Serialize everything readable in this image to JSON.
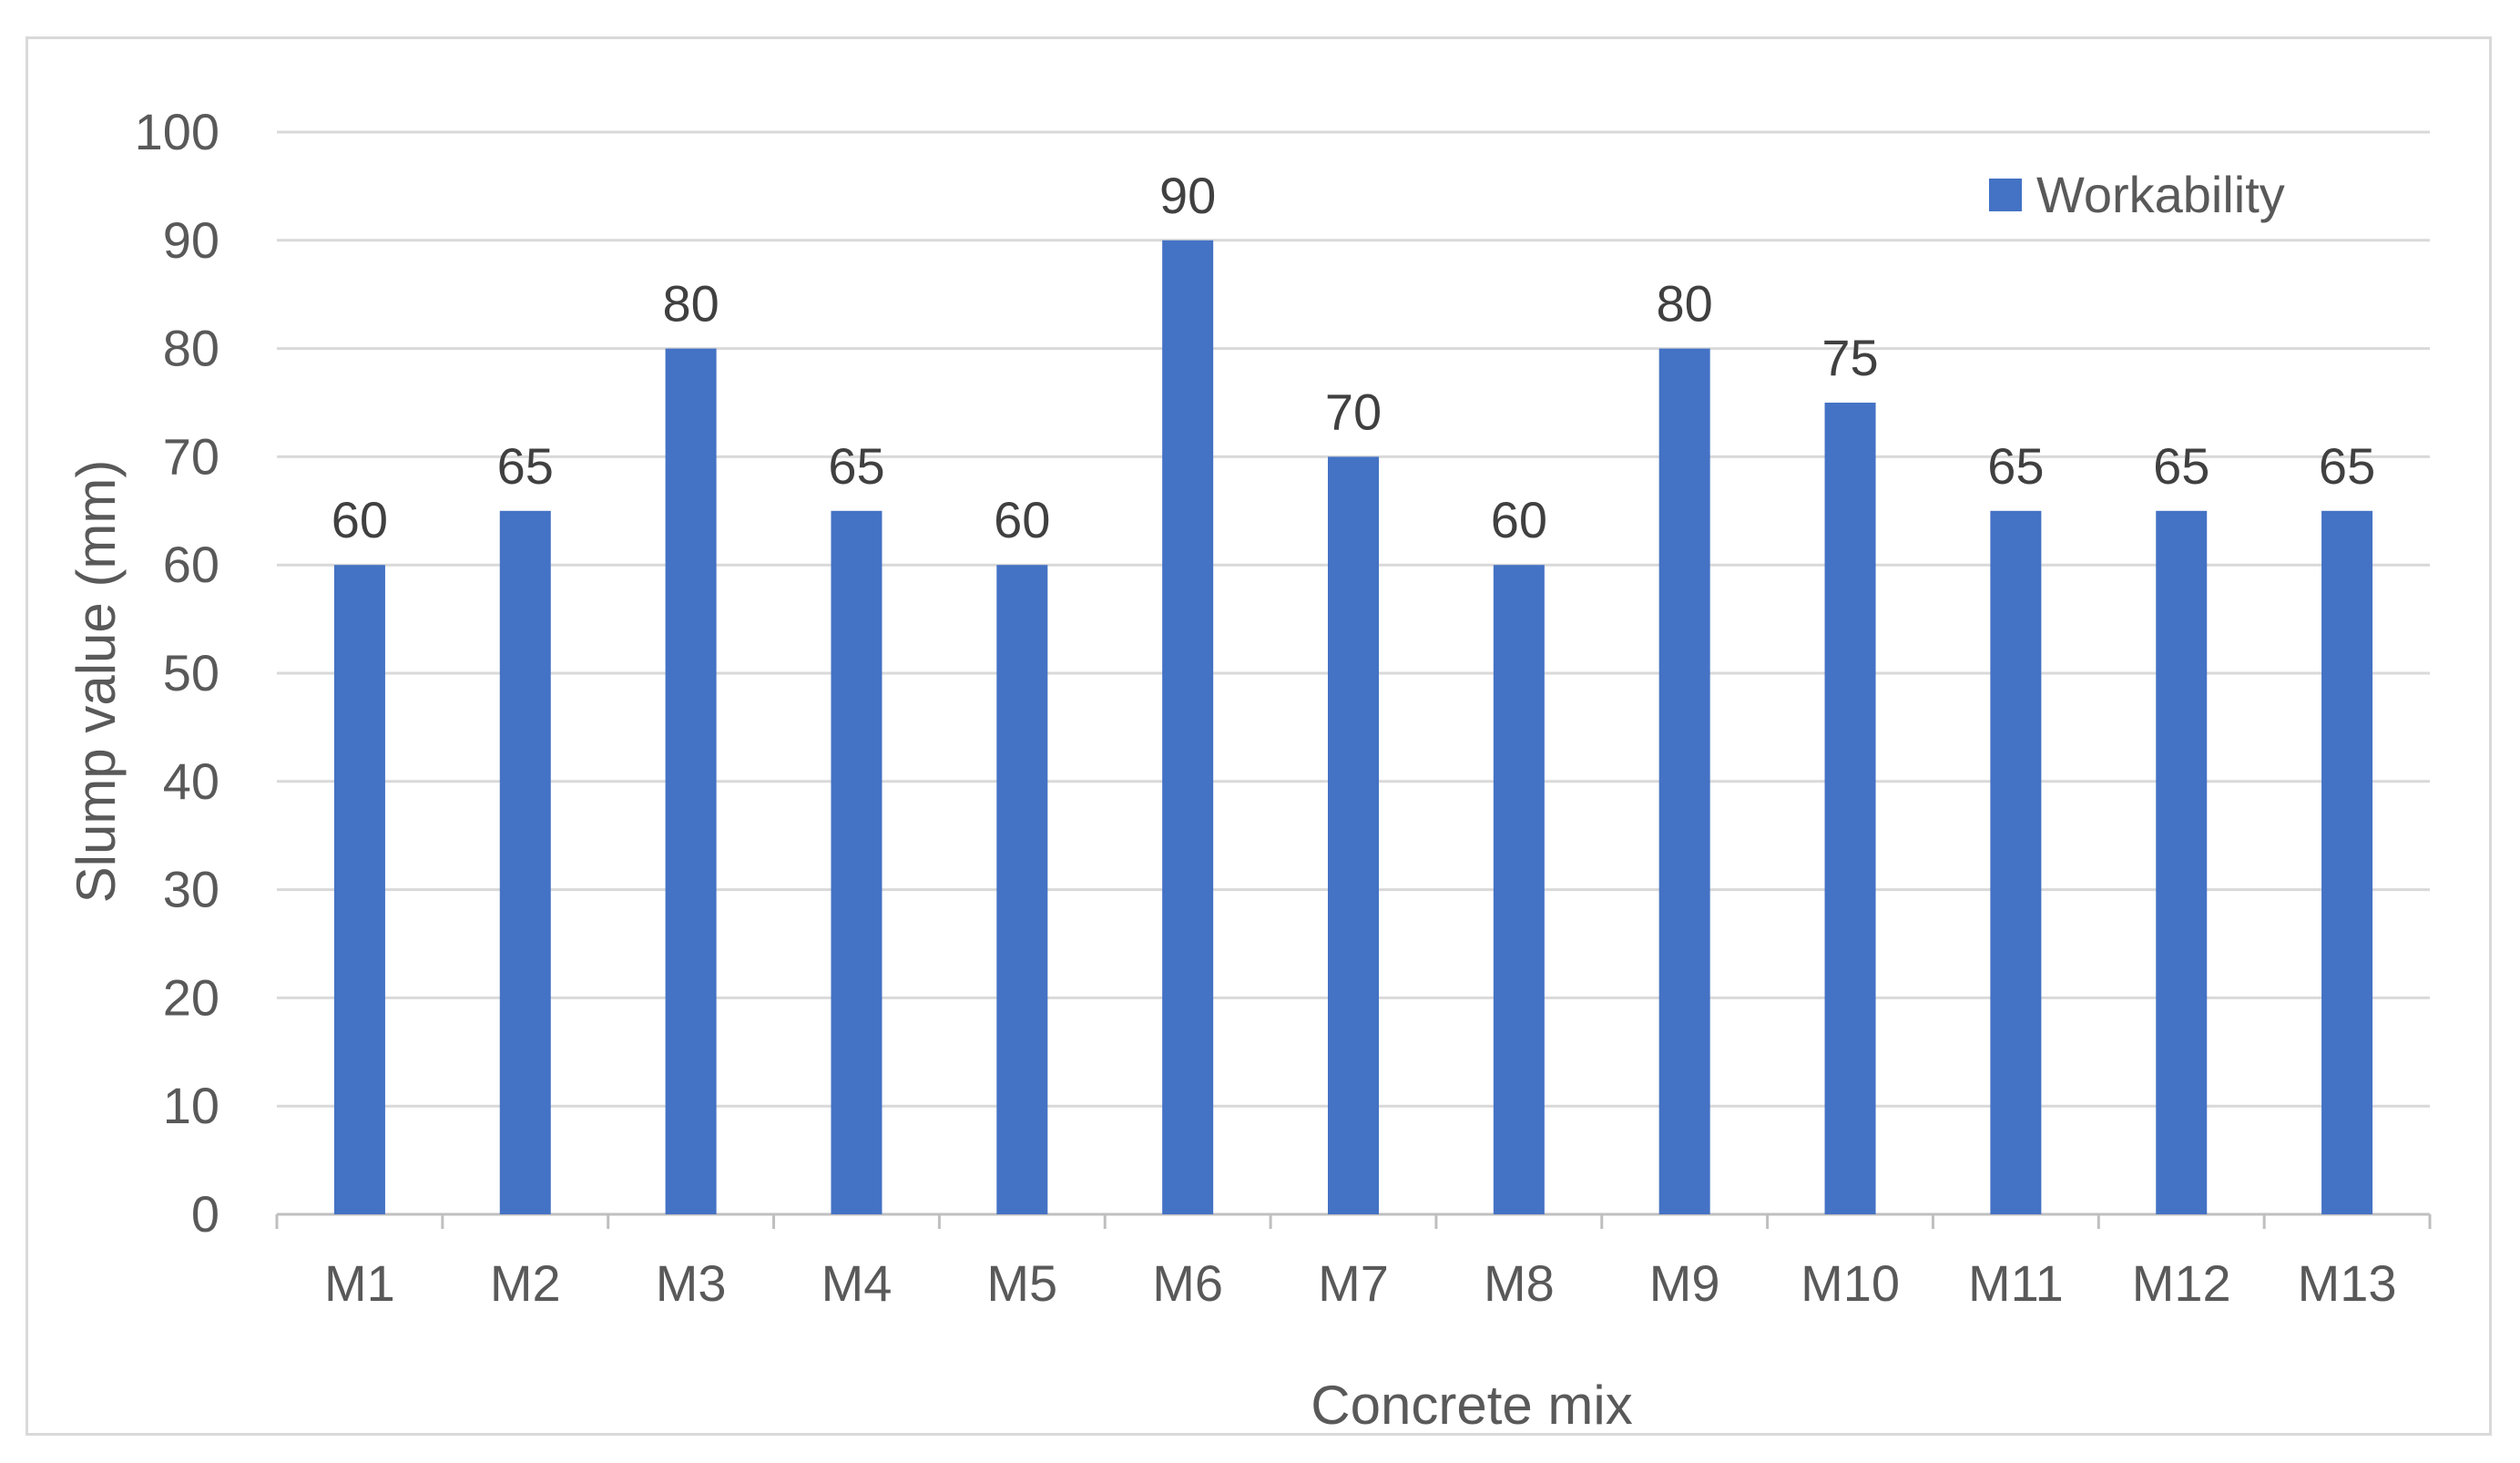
{
  "colors": {
    "bar": "#4472c4",
    "grid": "#d9d9d9",
    "axis": "#bfbfbf"
  },
  "chart_data": {
    "type": "bar",
    "categories": [
      "M1",
      "M2",
      "M3",
      "M4",
      "M5",
      "M6",
      "M7",
      "M8",
      "M9",
      "M10",
      "M11",
      "M12",
      "M13"
    ],
    "series": [
      {
        "name": "Workability",
        "values": [
          60,
          65,
          80,
          65,
          60,
          90,
          70,
          60,
          80,
          75,
          65,
          65,
          65
        ]
      }
    ],
    "title": "",
    "xlabel": "Concrete mix",
    "ylabel": "Slump value (mm)",
    "ylim": [
      0,
      100
    ],
    "yticks": [
      0,
      10,
      20,
      30,
      40,
      50,
      60,
      70,
      80,
      90,
      100
    ],
    "grid": true,
    "legend": "top-right",
    "data_labels": true
  }
}
